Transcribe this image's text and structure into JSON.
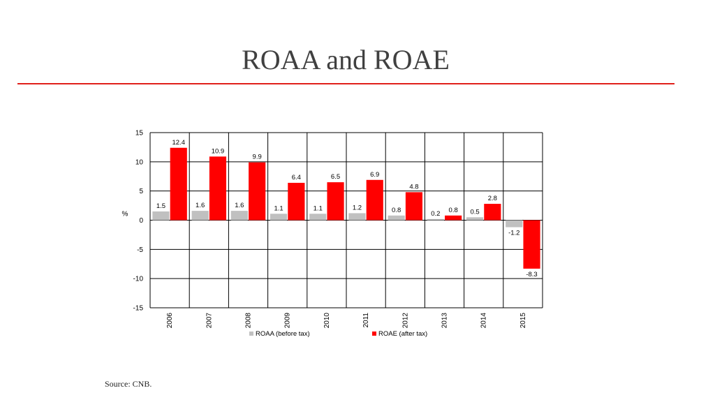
{
  "page": {
    "title": "ROAA and ROAE",
    "source": "Source: CNB."
  },
  "colors": {
    "accent_rule": "#e0201a",
    "roaa": "#c0c0c0",
    "roae": "#ff0000"
  },
  "chart_data": {
    "type": "bar",
    "categories": [
      "2006",
      "2007",
      "2008",
      "2009",
      "2010",
      "2011",
      "2012",
      "2013",
      "2014",
      "2015"
    ],
    "series": [
      {
        "name": "ROAA (before tax)",
        "values": [
          1.5,
          1.6,
          1.6,
          1.1,
          1.1,
          1.2,
          0.8,
          0.2,
          0.5,
          -1.2
        ]
      },
      {
        "name": "ROAE (after tax)",
        "values": [
          12.4,
          10.9,
          9.9,
          6.4,
          6.5,
          6.9,
          4.8,
          0.8,
          2.8,
          -8.3
        ]
      }
    ],
    "ylabel": "%",
    "ylim": [
      -15,
      15
    ],
    "yticks": [
      15,
      10,
      5,
      0,
      -5,
      -10,
      -15
    ],
    "grid": true,
    "legend": "bottom"
  }
}
